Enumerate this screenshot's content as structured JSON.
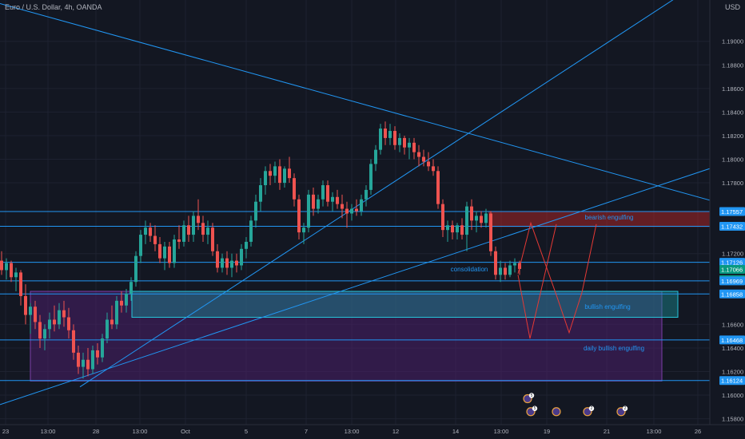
{
  "header": {
    "symbol_title": "Euro / U.S. Dollar, 4h, OANDA",
    "currency": "USD"
  },
  "colors": {
    "background": "#131722",
    "grid": "#1e2230",
    "axis_text": "#b2b5be",
    "bull_candle": "#26a69a",
    "bear_candle": "#ef5350",
    "line_blue": "#2196f3",
    "zone_red": "#c62828",
    "zone_teal": "#1b8f95",
    "zone_purple": "#4a1f6a",
    "path_red": "#e53935",
    "annotation_blue": "#2196f3",
    "annotation_red": "#e05a6a"
  },
  "chart_data": {
    "type": "candlestick",
    "y_axis": {
      "ylim": [
        1.1575,
        1.1935
      ],
      "tick_labels": [
        "1.19000",
        "1.18800",
        "1.18600",
        "1.18400",
        "1.18200",
        "1.18000",
        "1.17800",
        "1.17200",
        "1.16600",
        "1.16400",
        "1.16200",
        "1.16000",
        "1.15800"
      ],
      "tick_values": [
        1.19,
        1.188,
        1.186,
        1.184,
        1.182,
        1.18,
        1.178,
        1.172,
        1.166,
        1.164,
        1.162,
        1.16,
        1.158
      ]
    },
    "x_axis": {
      "range": [
        0,
        888
      ],
      "tick_labels": [
        "23",
        "13:00",
        "28",
        "13:00",
        "Oct",
        "5",
        "7",
        "13:00",
        "12",
        "14",
        "13:00",
        "19",
        "21",
        "13:00",
        "26"
      ],
      "tick_positions": [
        7,
        60,
        120,
        175,
        232,
        308,
        383,
        440,
        495,
        570,
        627,
        684,
        759,
        818,
        873
      ]
    },
    "horizontal_levels": [
      {
        "label": "1.17557",
        "value": 1.17557,
        "highlight": false
      },
      {
        "label": "1.17432",
        "value": 1.17432,
        "highlight": false
      },
      {
        "label": "1.17126",
        "value": 1.17126,
        "highlight": false
      },
      {
        "label": "1.17066",
        "value": 1.17066,
        "highlight": true
      },
      {
        "label": "03:25:10",
        "value": 1.1698,
        "highlight": true
      },
      {
        "label": "1.16969",
        "value": 1.16969,
        "highlight": false
      },
      {
        "label": "1.16858",
        "value": 1.16858,
        "highlight": false
      },
      {
        "label": "1.16468",
        "value": 1.16468,
        "highlight": false
      },
      {
        "label": "1.16124",
        "value": 1.16124,
        "highlight": false
      }
    ],
    "zones": [
      {
        "name": "bearish engulfing",
        "x0": 612,
        "x1": 928,
        "y0": 1.1743,
        "y1": 1.17557,
        "kind": "red"
      },
      {
        "name": "bullish engulfing",
        "x0": 165,
        "x1": 848,
        "y0": 1.1666,
        "y1": 1.1688,
        "kind": "teal"
      },
      {
        "name": "daily bullish engulfing",
        "x0": 38,
        "x1": 828,
        "y0": 1.1612,
        "y1": 1.1688,
        "kind": "purple"
      }
    ],
    "trend_lines": [
      {
        "x0": 0,
        "y0": 1.1932,
        "x1": 932,
        "y1": 1.1757
      },
      {
        "x0": 0,
        "y0": 1.1592,
        "x1": 932,
        "y1": 1.1802
      },
      {
        "x0": 100,
        "y0": 1.1607,
        "x1": 932,
        "y1": 1.1975
      }
    ],
    "projection_path": [
      [
        648,
        1.1703
      ],
      [
        664,
        1.1746
      ],
      [
        697,
        1.1683
      ],
      [
        712,
        1.1653
      ],
      [
        728,
        1.1687
      ],
      [
        746,
        1.1745
      ]
    ],
    "projection_path_2": [
      [
        648,
        1.1702
      ],
      [
        663,
        1.1648
      ],
      [
        696,
        1.1745
      ]
    ],
    "annotations": [
      {
        "text": "bearish engulfing",
        "x": 762,
        "y": 1.1751,
        "kind": "blue"
      },
      {
        "text": "consolidation",
        "x": 587,
        "y": 1.1707,
        "kind": "blue"
      },
      {
        "text": "bullish engulfing",
        "x": 760,
        "y": 1.1675,
        "kind": "blue"
      },
      {
        "text": "daily bullish engulfing",
        "x": 768,
        "y": 1.164,
        "kind": "blue"
      }
    ],
    "candles": [
      {
        "x": 2,
        "o": 1.1714,
        "h": 1.1722,
        "l": 1.1702,
        "c": 1.1706
      },
      {
        "x": 8,
        "o": 1.1706,
        "h": 1.1716,
        "l": 1.1698,
        "c": 1.1712
      },
      {
        "x": 14,
        "o": 1.1712,
        "h": 1.1714,
        "l": 1.1696,
        "c": 1.17
      },
      {
        "x": 20,
        "o": 1.17,
        "h": 1.1708,
        "l": 1.1688,
        "c": 1.1704
      },
      {
        "x": 26,
        "o": 1.1704,
        "h": 1.1706,
        "l": 1.1676,
        "c": 1.1684
      },
      {
        "x": 32,
        "o": 1.1684,
        "h": 1.1694,
        "l": 1.166,
        "c": 1.1668
      },
      {
        "x": 38,
        "o": 1.1668,
        "h": 1.1678,
        "l": 1.1652,
        "c": 1.1675
      },
      {
        "x": 44,
        "o": 1.1675,
        "h": 1.168,
        "l": 1.1656,
        "c": 1.1662
      },
      {
        "x": 50,
        "o": 1.1662,
        "h": 1.1668,
        "l": 1.164,
        "c": 1.1648
      },
      {
        "x": 56,
        "o": 1.1648,
        "h": 1.166,
        "l": 1.1638,
        "c": 1.1656
      },
      {
        "x": 62,
        "o": 1.1656,
        "h": 1.167,
        "l": 1.1648,
        "c": 1.1664
      },
      {
        "x": 68,
        "o": 1.1664,
        "h": 1.1676,
        "l": 1.1654,
        "c": 1.166
      },
      {
        "x": 74,
        "o": 1.166,
        "h": 1.1678,
        "l": 1.1656,
        "c": 1.1672
      },
      {
        "x": 80,
        "o": 1.1672,
        "h": 1.168,
        "l": 1.1658,
        "c": 1.1666
      },
      {
        "x": 86,
        "o": 1.1666,
        "h": 1.1674,
        "l": 1.1648,
        "c": 1.1655
      },
      {
        "x": 92,
        "o": 1.1655,
        "h": 1.166,
        "l": 1.163,
        "c": 1.1636
      },
      {
        "x": 98,
        "o": 1.1636,
        "h": 1.1642,
        "l": 1.1618,
        "c": 1.1624
      },
      {
        "x": 104,
        "o": 1.1624,
        "h": 1.1636,
        "l": 1.1614,
        "c": 1.163
      },
      {
        "x": 110,
        "o": 1.163,
        "h": 1.164,
        "l": 1.1616,
        "c": 1.1622
      },
      {
        "x": 116,
        "o": 1.1622,
        "h": 1.1642,
        "l": 1.1618,
        "c": 1.1638
      },
      {
        "x": 122,
        "o": 1.1638,
        "h": 1.1644,
        "l": 1.1626,
        "c": 1.1632
      },
      {
        "x": 128,
        "o": 1.1632,
        "h": 1.1652,
        "l": 1.1628,
        "c": 1.1648
      },
      {
        "x": 134,
        "o": 1.1648,
        "h": 1.167,
        "l": 1.1644,
        "c": 1.1664
      },
      {
        "x": 140,
        "o": 1.1664,
        "h": 1.1676,
        "l": 1.1656,
        "c": 1.166
      },
      {
        "x": 146,
        "o": 1.166,
        "h": 1.1684,
        "l": 1.1656,
        "c": 1.168
      },
      {
        "x": 152,
        "o": 1.168,
        "h": 1.1688,
        "l": 1.167,
        "c": 1.1676
      },
      {
        "x": 158,
        "o": 1.1676,
        "h": 1.169,
        "l": 1.167,
        "c": 1.1686
      },
      {
        "x": 164,
        "o": 1.1686,
        "h": 1.17,
        "l": 1.168,
        "c": 1.1696
      },
      {
        "x": 170,
        "o": 1.1696,
        "h": 1.1722,
        "l": 1.1692,
        "c": 1.1718
      },
      {
        "x": 176,
        "o": 1.1718,
        "h": 1.174,
        "l": 1.1712,
        "c": 1.1736
      },
      {
        "x": 182,
        "o": 1.1736,
        "h": 1.1748,
        "l": 1.1728,
        "c": 1.1742
      },
      {
        "x": 188,
        "o": 1.1742,
        "h": 1.1746,
        "l": 1.173,
        "c": 1.1735
      },
      {
        "x": 194,
        "o": 1.1735,
        "h": 1.1744,
        "l": 1.1722,
        "c": 1.1728
      },
      {
        "x": 200,
        "o": 1.1728,
        "h": 1.1734,
        "l": 1.1712,
        "c": 1.1716
      },
      {
        "x": 206,
        "o": 1.1716,
        "h": 1.173,
        "l": 1.1706,
        "c": 1.1726
      },
      {
        "x": 212,
        "o": 1.1726,
        "h": 1.173,
        "l": 1.1708,
        "c": 1.1712
      },
      {
        "x": 218,
        "o": 1.1712,
        "h": 1.1736,
        "l": 1.1708,
        "c": 1.1732
      },
      {
        "x": 224,
        "o": 1.1732,
        "h": 1.1744,
        "l": 1.1724,
        "c": 1.173
      },
      {
        "x": 230,
        "o": 1.173,
        "h": 1.1748,
        "l": 1.1726,
        "c": 1.1744
      },
      {
        "x": 236,
        "o": 1.1744,
        "h": 1.1752,
        "l": 1.173,
        "c": 1.1736
      },
      {
        "x": 242,
        "o": 1.1736,
        "h": 1.1756,
        "l": 1.173,
        "c": 1.1752
      },
      {
        "x": 248,
        "o": 1.1752,
        "h": 1.1766,
        "l": 1.174,
        "c": 1.1746
      },
      {
        "x": 254,
        "o": 1.1746,
        "h": 1.1752,
        "l": 1.173,
        "c": 1.1736
      },
      {
        "x": 260,
        "o": 1.1736,
        "h": 1.1748,
        "l": 1.1728,
        "c": 1.1742
      },
      {
        "x": 266,
        "o": 1.1742,
        "h": 1.1746,
        "l": 1.1718,
        "c": 1.1722
      },
      {
        "x": 272,
        "o": 1.1722,
        "h": 1.1728,
        "l": 1.1704,
        "c": 1.1708
      },
      {
        "x": 278,
        "o": 1.1708,
        "h": 1.172,
        "l": 1.1704,
        "c": 1.1716
      },
      {
        "x": 284,
        "o": 1.1716,
        "h": 1.1722,
        "l": 1.1702,
        "c": 1.1708
      },
      {
        "x": 290,
        "o": 1.1708,
        "h": 1.172,
        "l": 1.17,
        "c": 1.1714
      },
      {
        "x": 296,
        "o": 1.1714,
        "h": 1.172,
        "l": 1.1704,
        "c": 1.171
      },
      {
        "x": 302,
        "o": 1.171,
        "h": 1.1728,
        "l": 1.1706,
        "c": 1.1724
      },
      {
        "x": 308,
        "o": 1.1724,
        "h": 1.1734,
        "l": 1.1716,
        "c": 1.173
      },
      {
        "x": 314,
        "o": 1.173,
        "h": 1.1752,
        "l": 1.1726,
        "c": 1.1748
      },
      {
        "x": 320,
        "o": 1.1748,
        "h": 1.177,
        "l": 1.1742,
        "c": 1.1764
      },
      {
        "x": 326,
        "o": 1.1764,
        "h": 1.1784,
        "l": 1.1756,
        "c": 1.1778
      },
      {
        "x": 332,
        "o": 1.1778,
        "h": 1.1794,
        "l": 1.177,
        "c": 1.179
      },
      {
        "x": 338,
        "o": 1.179,
        "h": 1.1796,
        "l": 1.1778,
        "c": 1.1786
      },
      {
        "x": 344,
        "o": 1.1786,
        "h": 1.1798,
        "l": 1.178,
        "c": 1.1794
      },
      {
        "x": 350,
        "o": 1.1794,
        "h": 1.18,
        "l": 1.1774,
        "c": 1.178
      },
      {
        "x": 356,
        "o": 1.178,
        "h": 1.1794,
        "l": 1.1776,
        "c": 1.1792
      },
      {
        "x": 362,
        "o": 1.1792,
        "h": 1.1802,
        "l": 1.178,
        "c": 1.1784
      },
      {
        "x": 368,
        "o": 1.1784,
        "h": 1.1788,
        "l": 1.176,
        "c": 1.1766
      },
      {
        "x": 374,
        "o": 1.1766,
        "h": 1.177,
        "l": 1.1732,
        "c": 1.1738
      },
      {
        "x": 380,
        "o": 1.1738,
        "h": 1.1746,
        "l": 1.1728,
        "c": 1.1742
      },
      {
        "x": 386,
        "o": 1.1742,
        "h": 1.1774,
        "l": 1.1738,
        "c": 1.177
      },
      {
        "x": 392,
        "o": 1.177,
        "h": 1.1776,
        "l": 1.1752,
        "c": 1.1758
      },
      {
        "x": 398,
        "o": 1.1758,
        "h": 1.177,
        "l": 1.1754,
        "c": 1.1766
      },
      {
        "x": 404,
        "o": 1.1766,
        "h": 1.1782,
        "l": 1.176,
        "c": 1.1778
      },
      {
        "x": 410,
        "o": 1.1778,
        "h": 1.1782,
        "l": 1.176,
        "c": 1.1764
      },
      {
        "x": 416,
        "o": 1.1764,
        "h": 1.1772,
        "l": 1.1756,
        "c": 1.1768
      },
      {
        "x": 422,
        "o": 1.1768,
        "h": 1.1774,
        "l": 1.1758,
        "c": 1.1762
      },
      {
        "x": 428,
        "o": 1.1762,
        "h": 1.177,
        "l": 1.175,
        "c": 1.1758
      },
      {
        "x": 434,
        "o": 1.1758,
        "h": 1.1764,
        "l": 1.1742,
        "c": 1.1754
      },
      {
        "x": 440,
        "o": 1.1754,
        "h": 1.1762,
        "l": 1.1748,
        "c": 1.1758
      },
      {
        "x": 446,
        "o": 1.1758,
        "h": 1.1766,
        "l": 1.1752,
        "c": 1.1756
      },
      {
        "x": 452,
        "o": 1.1756,
        "h": 1.177,
        "l": 1.1752,
        "c": 1.1766
      },
      {
        "x": 458,
        "o": 1.1766,
        "h": 1.1778,
        "l": 1.176,
        "c": 1.1774
      },
      {
        "x": 464,
        "o": 1.1774,
        "h": 1.18,
        "l": 1.177,
        "c": 1.1796
      },
      {
        "x": 470,
        "o": 1.1796,
        "h": 1.1812,
        "l": 1.179,
        "c": 1.1808
      },
      {
        "x": 476,
        "o": 1.1808,
        "h": 1.183,
        "l": 1.1804,
        "c": 1.1826
      },
      {
        "x": 482,
        "o": 1.1826,
        "h": 1.1832,
        "l": 1.1812,
        "c": 1.1818
      },
      {
        "x": 488,
        "o": 1.1818,
        "h": 1.183,
        "l": 1.1812,
        "c": 1.1824
      },
      {
        "x": 494,
        "o": 1.1824,
        "h": 1.1828,
        "l": 1.1808,
        "c": 1.1812
      },
      {
        "x": 500,
        "o": 1.1812,
        "h": 1.1822,
        "l": 1.1806,
        "c": 1.1818
      },
      {
        "x": 506,
        "o": 1.1818,
        "h": 1.182,
        "l": 1.1804,
        "c": 1.181
      },
      {
        "x": 512,
        "o": 1.181,
        "h": 1.1818,
        "l": 1.18,
        "c": 1.1814
      },
      {
        "x": 518,
        "o": 1.1814,
        "h": 1.1818,
        "l": 1.18,
        "c": 1.1806
      },
      {
        "x": 524,
        "o": 1.1806,
        "h": 1.1812,
        "l": 1.1794,
        "c": 1.1802
      },
      {
        "x": 530,
        "o": 1.1802,
        "h": 1.1808,
        "l": 1.1794,
        "c": 1.1798
      },
      {
        "x": 536,
        "o": 1.1798,
        "h": 1.1806,
        "l": 1.179,
        "c": 1.1794
      },
      {
        "x": 542,
        "o": 1.1794,
        "h": 1.18,
        "l": 1.1786,
        "c": 1.179
      },
      {
        "x": 548,
        "o": 1.179,
        "h": 1.1794,
        "l": 1.1758,
        "c": 1.1762
      },
      {
        "x": 554,
        "o": 1.1762,
        "h": 1.1766,
        "l": 1.1734,
        "c": 1.174
      },
      {
        "x": 560,
        "o": 1.174,
        "h": 1.1748,
        "l": 1.173,
        "c": 1.1744
      },
      {
        "x": 566,
        "o": 1.1744,
        "h": 1.1748,
        "l": 1.1732,
        "c": 1.1738
      },
      {
        "x": 572,
        "o": 1.1738,
        "h": 1.1746,
        "l": 1.1732,
        "c": 1.1744
      },
      {
        "x": 578,
        "o": 1.1744,
        "h": 1.175,
        "l": 1.1732,
        "c": 1.1736
      },
      {
        "x": 584,
        "o": 1.1736,
        "h": 1.1764,
        "l": 1.1722,
        "c": 1.176
      },
      {
        "x": 590,
        "o": 1.176,
        "h": 1.1766,
        "l": 1.174,
        "c": 1.1748
      },
      {
        "x": 596,
        "o": 1.1748,
        "h": 1.1756,
        "l": 1.1738,
        "c": 1.1752
      },
      {
        "x": 602,
        "o": 1.1752,
        "h": 1.1756,
        "l": 1.1742,
        "c": 1.1746
      },
      {
        "x": 608,
        "o": 1.1746,
        "h": 1.1758,
        "l": 1.1742,
        "c": 1.1754
      },
      {
        "x": 614,
        "o": 1.1754,
        "h": 1.1756,
        "l": 1.1718,
        "c": 1.1722
      },
      {
        "x": 620,
        "o": 1.1722,
        "h": 1.1726,
        "l": 1.1698,
        "c": 1.1702
      },
      {
        "x": 626,
        "o": 1.1702,
        "h": 1.1714,
        "l": 1.1696,
        "c": 1.1708
      },
      {
        "x": 632,
        "o": 1.1708,
        "h": 1.1712,
        "l": 1.1698,
        "c": 1.1702
      },
      {
        "x": 638,
        "o": 1.1702,
        "h": 1.1714,
        "l": 1.17,
        "c": 1.171
      },
      {
        "x": 644,
        "o": 1.171,
        "h": 1.1716,
        "l": 1.1704,
        "c": 1.1712
      },
      {
        "x": 650,
        "o": 1.1712,
        "h": 1.1714,
        "l": 1.1702,
        "c": 1.1707
      }
    ],
    "event_markers": [
      {
        "x": 660,
        "y": 1.1597,
        "count": "5"
      },
      {
        "x": 664,
        "y": 1.1586,
        "count": "5"
      },
      {
        "x": 696,
        "y": 1.1586,
        "count": ""
      },
      {
        "x": 735,
        "y": 1.1586,
        "count": "2"
      },
      {
        "x": 777,
        "y": 1.1586,
        "count": "2"
      }
    ]
  }
}
